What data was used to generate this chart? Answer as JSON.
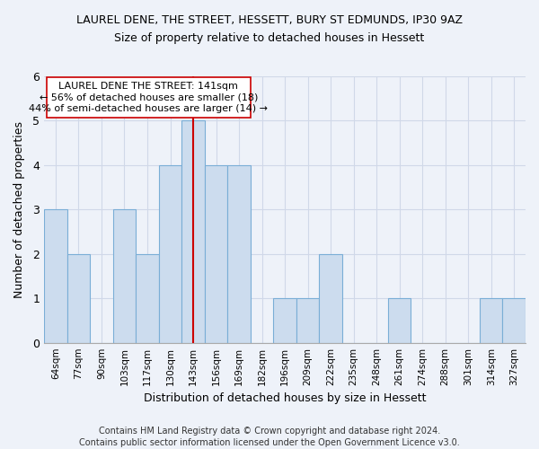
{
  "title_line1": "LAUREL DENE, THE STREET, HESSETT, BURY ST EDMUNDS, IP30 9AZ",
  "title_line2": "Size of property relative to detached houses in Hessett",
  "xlabel": "Distribution of detached houses by size in Hessett",
  "ylabel": "Number of detached properties",
  "categories": [
    "64sqm",
    "77sqm",
    "90sqm",
    "103sqm",
    "117sqm",
    "130sqm",
    "143sqm",
    "156sqm",
    "169sqm",
    "182sqm",
    "196sqm",
    "209sqm",
    "222sqm",
    "235sqm",
    "248sqm",
    "261sqm",
    "274sqm",
    "288sqm",
    "301sqm",
    "314sqm",
    "327sqm"
  ],
  "values": [
    3,
    2,
    0,
    3,
    2,
    4,
    5,
    4,
    4,
    0,
    1,
    1,
    2,
    0,
    0,
    1,
    0,
    0,
    0,
    1,
    1
  ],
  "bar_color": "#ccdcee",
  "bar_edge_color": "#7aaed6",
  "marker_value": "143sqm",
  "marker_color": "#cc0000",
  "annotation_title": "LAUREL DENE THE STREET: 141sqm",
  "annotation_line2": "← 56% of detached houses are smaller (18)",
  "annotation_line3": "44% of semi-detached houses are larger (14) →",
  "footer_line1": "Contains HM Land Registry data © Crown copyright and database right 2024.",
  "footer_line2": "Contains public sector information licensed under the Open Government Licence v3.0.",
  "ylim": [
    0,
    6
  ],
  "yticks": [
    0,
    1,
    2,
    3,
    4,
    5,
    6
  ],
  "bg_color": "#eef2f9",
  "grid_color": "#d0d8e8"
}
